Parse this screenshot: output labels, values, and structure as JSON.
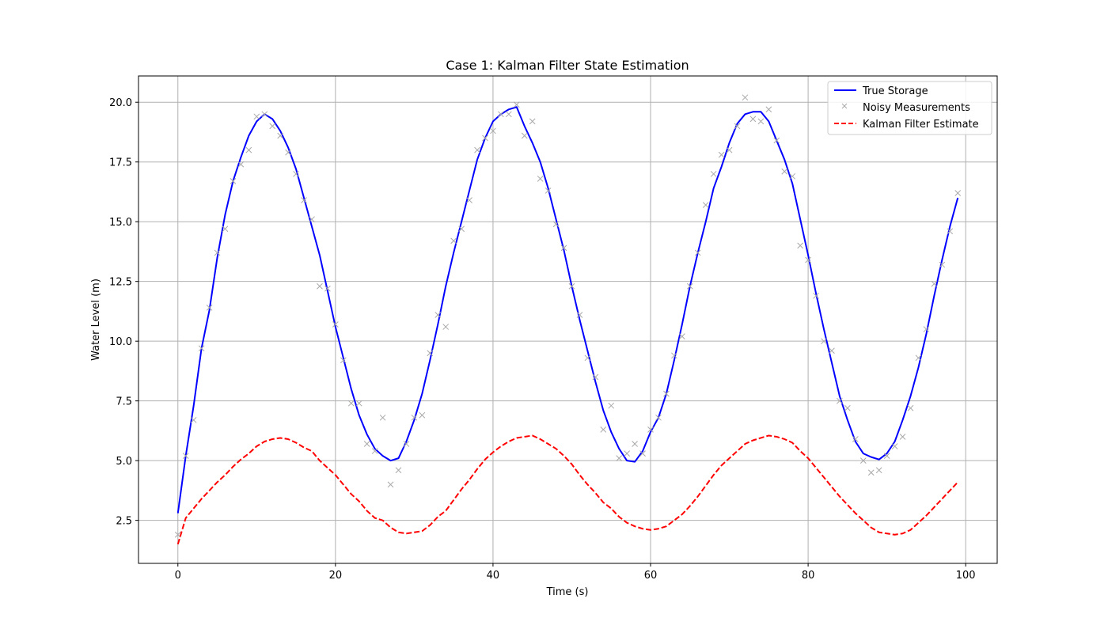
{
  "chart_data": {
    "type": "line",
    "title": "Case 1: Kalman Filter State Estimation",
    "xlabel": "Time (s)",
    "ylabel": "Water Level (m)",
    "xlim": [
      -5,
      104
    ],
    "ylim": [
      0.7,
      21.1
    ],
    "xticks": [
      0,
      20,
      40,
      60,
      80,
      100
    ],
    "yticks": [
      2.5,
      5.0,
      7.5,
      10.0,
      12.5,
      15.0,
      17.5,
      20.0
    ],
    "xtick_labels": [
      "0",
      "20",
      "40",
      "60",
      "80",
      "100"
    ],
    "ytick_labels": [
      "2.5",
      "5.0",
      "7.5",
      "10.0",
      "12.5",
      "15.0",
      "17.5",
      "20.0"
    ],
    "grid": true,
    "legend_position": "top-right",
    "series": [
      {
        "name": "True Storage",
        "style": "solid-line",
        "color": "#0000ff",
        "x": [
          0,
          1,
          2,
          3,
          4,
          5,
          6,
          7,
          8,
          9,
          10,
          11,
          12,
          13,
          14,
          15,
          16,
          17,
          18,
          19,
          20,
          21,
          22,
          23,
          24,
          25,
          26,
          27,
          28,
          29,
          30,
          31,
          32,
          33,
          34,
          35,
          36,
          37,
          38,
          39,
          40,
          41,
          42,
          43,
          44,
          45,
          46,
          47,
          48,
          49,
          50,
          51,
          52,
          53,
          54,
          55,
          56,
          57,
          58,
          59,
          60,
          61,
          62,
          63,
          64,
          65,
          66,
          67,
          68,
          69,
          70,
          71,
          72,
          73,
          74,
          75,
          76,
          77,
          78,
          79,
          80,
          81,
          82,
          83,
          84,
          85,
          86,
          87,
          88,
          89,
          90,
          91,
          92,
          93,
          94,
          95,
          96,
          97,
          98,
          99
        ],
        "y": [
          2.8,
          5.2,
          7.3,
          9.7,
          11.3,
          13.5,
          15.3,
          16.7,
          17.7,
          18.6,
          19.2,
          19.5,
          19.3,
          18.8,
          18.1,
          17.2,
          16.0,
          14.8,
          13.6,
          12.1,
          10.6,
          9.3,
          8.0,
          6.9,
          6.1,
          5.5,
          5.2,
          5.0,
          5.1,
          5.8,
          6.7,
          7.8,
          9.2,
          10.7,
          12.3,
          13.7,
          15.0,
          16.3,
          17.6,
          18.5,
          19.2,
          19.5,
          19.7,
          19.8,
          19.0,
          18.3,
          17.5,
          16.4,
          15.1,
          13.8,
          12.3,
          10.9,
          9.6,
          8.3,
          7.1,
          6.2,
          5.5,
          5.0,
          4.95,
          5.4,
          6.2,
          6.8,
          7.8,
          9.2,
          10.7,
          12.3,
          13.7,
          15.0,
          16.4,
          17.3,
          18.3,
          19.1,
          19.5,
          19.6,
          19.6,
          19.2,
          18.4,
          17.6,
          16.6,
          15.1,
          13.6,
          12.0,
          10.5,
          9.1,
          7.7,
          6.7,
          5.8,
          5.3,
          5.15,
          5.05,
          5.3,
          5.8,
          6.7,
          7.7,
          8.9,
          10.3,
          11.9,
          13.4,
          14.8,
          16.0
        ]
      },
      {
        "name": "Noisy Measurements",
        "style": "x-markers",
        "color": "#a9a9a9",
        "x": [
          0,
          1,
          2,
          3,
          4,
          5,
          6,
          7,
          8,
          9,
          10,
          11,
          12,
          13,
          14,
          15,
          16,
          17,
          18,
          19,
          20,
          21,
          22,
          23,
          24,
          25,
          26,
          27,
          28,
          29,
          30,
          31,
          32,
          33,
          34,
          35,
          36,
          37,
          38,
          39,
          40,
          41,
          42,
          43,
          44,
          45,
          46,
          47,
          48,
          49,
          50,
          51,
          52,
          53,
          54,
          55,
          56,
          57,
          58,
          59,
          60,
          61,
          62,
          63,
          64,
          65,
          66,
          67,
          68,
          69,
          70,
          71,
          72,
          73,
          74,
          75,
          76,
          77,
          78,
          79,
          80,
          81,
          82,
          83,
          84,
          85,
          86,
          87,
          88,
          89,
          90,
          91,
          92,
          93,
          94,
          95,
          96,
          97,
          98,
          99
        ],
        "y": [
          1.9,
          5.2,
          6.7,
          9.7,
          11.4,
          13.7,
          14.7,
          16.7,
          17.4,
          18.0,
          19.4,
          19.5,
          19.0,
          18.6,
          17.9,
          17.0,
          15.9,
          15.1,
          12.3,
          12.2,
          10.7,
          9.2,
          7.4,
          7.4,
          5.7,
          5.4,
          6.8,
          4.0,
          4.6,
          5.7,
          6.8,
          6.9,
          9.5,
          11.1,
          10.6,
          14.2,
          14.7,
          15.9,
          18.0,
          18.5,
          18.8,
          19.5,
          19.5,
          19.9,
          18.6,
          19.2,
          16.8,
          16.3,
          14.9,
          13.9,
          12.3,
          11.1,
          9.3,
          8.5,
          6.3,
          7.3,
          5.1,
          5.3,
          5.7,
          5.3,
          6.3,
          6.8,
          7.8,
          9.4,
          10.2,
          12.3,
          13.7,
          15.7,
          17.0,
          17.8,
          18.0,
          19.0,
          20.2,
          19.3,
          19.2,
          19.7,
          18.4,
          17.1,
          16.9,
          14.0,
          13.4,
          11.9,
          10.0,
          9.6,
          7.5,
          7.2,
          5.9,
          5.0,
          4.5,
          4.6,
          5.2,
          5.6,
          6.0,
          7.2,
          9.3,
          10.5,
          12.4,
          13.2,
          14.6,
          16.2
        ]
      },
      {
        "name": "Kalman Filter Estimate",
        "style": "dashed-line",
        "color": "#ff0000",
        "x": [
          0,
          1,
          2,
          3,
          4,
          5,
          6,
          7,
          8,
          9,
          10,
          11,
          12,
          13,
          14,
          15,
          16,
          17,
          18,
          19,
          20,
          21,
          22,
          23,
          24,
          25,
          26,
          27,
          28,
          29,
          30,
          31,
          32,
          33,
          34,
          35,
          36,
          37,
          38,
          39,
          40,
          41,
          42,
          43,
          44,
          45,
          46,
          47,
          48,
          49,
          50,
          51,
          52,
          53,
          54,
          55,
          56,
          57,
          58,
          59,
          60,
          61,
          62,
          63,
          64,
          65,
          66,
          67,
          68,
          69,
          70,
          71,
          72,
          73,
          74,
          75,
          76,
          77,
          78,
          79,
          80,
          81,
          82,
          83,
          84,
          85,
          86,
          87,
          88,
          89,
          90,
          91,
          92,
          93,
          94,
          95,
          96,
          97,
          98,
          99
        ],
        "y": [
          1.5,
          2.6,
          3.0,
          3.4,
          3.75,
          4.1,
          4.4,
          4.75,
          5.05,
          5.3,
          5.6,
          5.8,
          5.9,
          5.95,
          5.9,
          5.75,
          5.55,
          5.4,
          5.0,
          4.7,
          4.4,
          4.0,
          3.6,
          3.3,
          2.9,
          2.6,
          2.5,
          2.2,
          2.0,
          1.95,
          2.0,
          2.05,
          2.3,
          2.65,
          2.9,
          3.35,
          3.8,
          4.2,
          4.65,
          5.05,
          5.35,
          5.6,
          5.8,
          5.95,
          6.0,
          6.05,
          5.9,
          5.7,
          5.5,
          5.2,
          4.85,
          4.4,
          4.0,
          3.65,
          3.25,
          3.0,
          2.65,
          2.4,
          2.25,
          2.15,
          2.1,
          2.15,
          2.25,
          2.5,
          2.75,
          3.1,
          3.5,
          3.95,
          4.4,
          4.8,
          5.1,
          5.4,
          5.7,
          5.85,
          5.95,
          6.05,
          6.0,
          5.9,
          5.75,
          5.4,
          5.1,
          4.7,
          4.3,
          3.9,
          3.5,
          3.15,
          2.8,
          2.5,
          2.2,
          2.0,
          1.95,
          1.9,
          1.95,
          2.1,
          2.4,
          2.7,
          3.05,
          3.4,
          3.75,
          4.1
        ]
      }
    ]
  }
}
